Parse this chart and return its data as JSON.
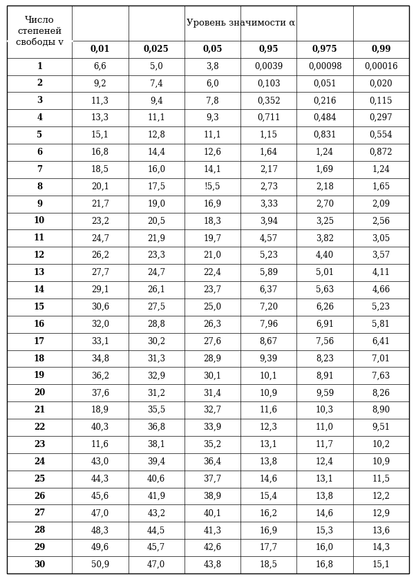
{
  "header_col": "Число\nстепеней\nсвободы v",
  "header_main": "Уровень значимости α",
  "col_headers": [
    "0,01",
    "0,025",
    "0,05",
    "0,95",
    "0,975",
    "0,99"
  ],
  "rows": [
    [
      "1",
      "6,6",
      "5,0",
      "3,8",
      "0,0039",
      "0,00098",
      "0,00016"
    ],
    [
      "2",
      "9,2",
      "7,4",
      "6,0",
      "0,103",
      "0,051",
      "0,020"
    ],
    [
      "3",
      "11,3",
      "9,4",
      "7,8",
      "0,352",
      "0,216",
      "0,115"
    ],
    [
      "4",
      "13,3",
      "11,1",
      "9,3",
      "0,711",
      "0,484",
      "0,297"
    ],
    [
      "5",
      "15,1",
      "12,8",
      "11,1",
      "1,15",
      "0,831",
      "0,554"
    ],
    [
      "6",
      "16,8",
      "14,4",
      "12,6",
      "1,64",
      "1,24",
      "0,872"
    ],
    [
      "7",
      "18,5",
      "16,0",
      "14,1",
      "2,17",
      "1,69",
      "1,24"
    ],
    [
      "8",
      "20,1",
      "17,5",
      "!5,5",
      "2,73",
      "2,18",
      "1,65"
    ],
    [
      "9",
      "21,7",
      "19,0",
      "16,9",
      "3,33",
      "2,70",
      "2,09"
    ],
    [
      "10",
      "23,2",
      "20,5",
      "18,3",
      "3,94",
      "3,25",
      "2,56"
    ],
    [
      "11",
      "24,7",
      "21,9",
      "19,7",
      "4,57",
      "3,82",
      "3,05"
    ],
    [
      "12",
      "26,2",
      "23,3",
      "21,0",
      "5,23",
      "4,40",
      "3,57"
    ],
    [
      "13",
      "27,7",
      "24,7",
      "22,4",
      "5,89",
      "5,01",
      "4,11"
    ],
    [
      "14",
      "29,1",
      "26,1",
      "23,7",
      "6,37",
      "5,63",
      "4,66"
    ],
    [
      "15",
      "30,6",
      "27,5",
      "25,0",
      "7,20",
      "6,26",
      "5,23"
    ],
    [
      "16",
      "32,0",
      "28,8",
      "26,3",
      "7,96",
      "6,91",
      "5,81"
    ],
    [
      "17",
      "33,1",
      "30,2",
      "27,6",
      "8,67",
      "7,56",
      "6,41"
    ],
    [
      "18",
      "34,8",
      "31,3",
      "28,9",
      "9,39",
      "8,23",
      "7,01"
    ],
    [
      "19",
      "36,2",
      "32,9",
      "30,1",
      "10,1",
      "8,91",
      "7,63"
    ],
    [
      "20",
      "37,6",
      "31,2",
      "31,4",
      "10,9",
      "9,59",
      "8,26"
    ],
    [
      "21",
      "18,9",
      "35,5",
      "32,7",
      "11,6",
      "10,3",
      "8,90"
    ],
    [
      "22",
      "40,3",
      "36,8",
      "33,9",
      "12,3",
      "11,0",
      "9,51"
    ],
    [
      "23",
      "11,6",
      "38,1",
      "35,2",
      "13,1",
      "11,7",
      "10,2"
    ],
    [
      "24",
      "43,0",
      "39,4",
      "36,4",
      "13,8",
      "12,4",
      "10,9"
    ],
    [
      "25",
      "44,3",
      "40,6",
      "37,7",
      "14,6",
      "13,1",
      "11,5"
    ],
    [
      "26",
      "45,6",
      "41,9",
      "38,9",
      "15,4",
      "13,8",
      "12,2"
    ],
    [
      "27",
      "47,0",
      "43,2",
      "40,1",
      "16,2",
      "14,6",
      "12,9"
    ],
    [
      "28",
      "48,3",
      "44,5",
      "41,3",
      "16,9",
      "15,3",
      "13,6"
    ],
    [
      "29",
      "49,6",
      "45,7",
      "42,6",
      "17,7",
      "16,0",
      "14,3"
    ],
    [
      "30",
      "50,9",
      "47,0",
      "43,8",
      "18,5",
      "16,8",
      "15,1"
    ]
  ],
  "bg_color": "#ffffff",
  "line_color": "#000000",
  "text_color": "#000000",
  "font_size": 8.5,
  "header_font_size": 9.5,
  "fig_width": 6.02,
  "fig_height": 8.38,
  "dpi": 100
}
